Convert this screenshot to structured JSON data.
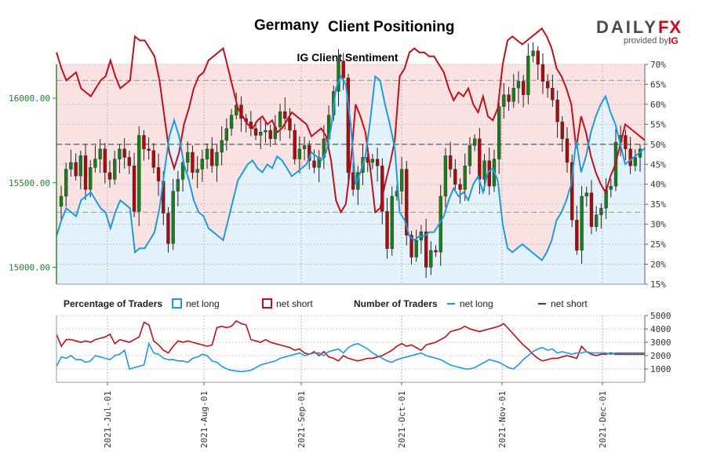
{
  "header": {
    "title_country": "Germany",
    "title_rest": "Client Positioning",
    "subtitle": "IG Client Sentiment",
    "logo_main": "DAILY",
    "logo_fx": "FX",
    "logo_provided": "provided by",
    "logo_ig": "IG"
  },
  "legend": {
    "pct_title": "Percentage of Traders",
    "pct_long": "net long",
    "pct_short": "net short",
    "num_title": "Number of Traders",
    "num_long": "net long",
    "num_short": "net short"
  },
  "colors": {
    "long": "#1e9be0",
    "short": "#c0101e",
    "candle_up": "#1f7a1f",
    "candle_down": "#a01010",
    "short_fill": "#fbe3e3",
    "long_fill": "#e4f2fb",
    "price_axis": "#2e7d32"
  },
  "chart_data": [
    {
      "type": "candlestick+line",
      "name": "Germany 30 price with IG client sentiment",
      "price_ticks": [
        "15000.00",
        "15500.00",
        "16000.00"
      ],
      "price_range": [
        14900,
        16200
      ],
      "pct_ticks": [
        "15%",
        "20%",
        "25%",
        "30%",
        "35%",
        "40%",
        "45%",
        "50%",
        "55%",
        "60%",
        "65%",
        "70%"
      ],
      "pct_range": [
        15,
        70
      ],
      "reference_lines_pct": [
        33,
        50,
        66
      ],
      "price_series": [
        15360,
        15420,
        15580,
        15620,
        15540,
        15660,
        15460,
        15590,
        15640,
        15700,
        15560,
        15520,
        15640,
        15700,
        15650,
        15600,
        15330,
        15780,
        15700,
        15690,
        15590,
        15510,
        15320,
        15140,
        15450,
        15520,
        15620,
        15680,
        15560,
        15580,
        15640,
        15700,
        15600,
        15680,
        15750,
        15820,
        15900,
        15960,
        15880,
        15860,
        15820,
        15780,
        15800,
        15810,
        15760,
        15830,
        15920,
        15880,
        15810,
        15640,
        15700,
        15720,
        15630,
        15590,
        15650,
        15760,
        15900,
        16040,
        16220,
        16120,
        15560,
        15460,
        15560,
        15650,
        15620,
        15640,
        15600,
        15330,
        15110,
        15420,
        15450,
        15580,
        15190,
        15060,
        15160,
        15210,
        15000,
        15100,
        15090,
        15420,
        15660,
        15580,
        15490,
        15460,
        15600,
        15720,
        15760,
        15520,
        15630,
        15480,
        15640,
        15950,
        16020,
        15980,
        16060,
        16100,
        16020,
        16250,
        16280,
        16200,
        16100,
        16060,
        15990,
        15860,
        15760,
        15620,
        15280,
        15100,
        15420,
        15440,
        15240,
        15310,
        15350,
        15460,
        15480,
        15740,
        15780,
        15700,
        15600,
        15650,
        15700
      ],
      "pct_long_series": [
        27,
        31,
        34,
        33,
        32,
        36,
        37,
        38,
        36,
        34,
        33,
        29,
        33,
        36,
        35,
        34,
        23,
        24,
        24,
        26,
        28,
        34,
        43,
        52,
        56,
        52,
        45,
        41,
        36,
        33,
        32,
        29,
        28,
        27,
        26,
        31,
        36,
        41,
        43,
        45,
        46,
        44,
        43,
        45,
        44,
        47,
        46,
        44,
        42,
        43,
        44,
        45,
        48,
        47,
        46,
        48,
        54,
        64,
        67,
        65,
        55,
        40,
        43,
        47,
        56,
        67,
        66,
        60,
        55,
        49,
        33,
        31,
        27,
        26,
        27,
        27,
        28,
        28,
        30,
        32,
        36,
        39,
        37,
        38,
        36,
        40,
        42,
        38,
        43,
        44,
        41,
        30,
        24,
        23,
        24,
        25,
        24,
        23,
        22,
        21,
        23,
        26,
        31,
        33,
        36,
        40,
        51,
        43,
        47,
        53,
        57,
        60,
        62,
        58,
        55,
        50,
        45,
        46,
        47,
        48,
        49
      ],
      "pct_short_series": [
        73,
        69,
        66,
        67,
        68,
        64,
        63,
        62,
        64,
        66,
        67,
        71,
        67,
        64,
        65,
        66,
        77,
        76,
        76,
        74,
        72,
        66,
        57,
        48,
        44,
        48,
        55,
        59,
        64,
        67,
        68,
        71,
        72,
        73,
        74,
        69,
        64,
        59,
        57,
        55,
        54,
        56,
        57,
        55,
        56,
        53,
        54,
        56,
        58,
        57,
        56,
        55,
        52,
        53,
        54,
        52,
        46,
        36,
        33,
        35,
        45,
        60,
        57,
        53,
        44,
        33,
        34,
        40,
        45,
        51,
        67,
        69,
        73,
        74,
        73,
        73,
        72,
        72,
        70,
        68,
        64,
        61,
        63,
        62,
        64,
        60,
        58,
        62,
        57,
        56,
        59,
        70,
        76,
        77,
        76,
        75,
        76,
        77,
        78,
        79,
        77,
        74,
        69,
        67,
        64,
        60,
        49,
        57,
        53,
        47,
        43,
        40,
        38,
        42,
        45,
        50,
        55,
        54,
        53,
        52,
        51
      ],
      "date_ticks": [
        "2021-Jul-01",
        "2021-Aug-01",
        "2021-Sep-01",
        "2021-Oct-01",
        "2021-Nov-01",
        "2021-Dec-01"
      ]
    },
    {
      "type": "line",
      "name": "Number of Traders",
      "count_ticks": [
        "1000",
        "2000",
        "3000",
        "4000",
        "5000"
      ],
      "count_range": [
        0,
        5000
      ],
      "num_long_series": [
        1200,
        1900,
        1800,
        2000,
        1700,
        1700,
        1500,
        1600,
        2000,
        1900,
        1800,
        1700,
        2000,
        2100,
        2400,
        1000,
        1100,
        1200,
        1300,
        2900,
        2200,
        2100,
        1800,
        1700,
        1700,
        1600,
        1600,
        1500,
        1800,
        1900,
        2100,
        2000,
        1600,
        1500,
        1200,
        1000,
        900,
        850,
        800,
        850,
        900,
        1100,
        1300,
        1400,
        1500,
        1600,
        1800,
        1900,
        2000,
        2100,
        2200,
        2000,
        2100,
        2200,
        2200,
        2000,
        2300,
        2400,
        2500,
        2200,
        2600,
        2800,
        2900,
        2700,
        2500,
        2200,
        2000,
        1800,
        1600,
        1500,
        1700,
        1800,
        1900,
        2000,
        2100,
        2200,
        2000,
        1900,
        1800,
        1700,
        1500,
        1300,
        1200,
        1100,
        1000,
        1000,
        1100,
        1300,
        1500,
        1700,
        1600,
        1500,
        1300,
        1100,
        1000,
        1300,
        1700,
        2000,
        2300,
        2500,
        2600,
        2400,
        2500,
        2200,
        2300,
        2200,
        2100,
        2200,
        2200,
        2300,
        2200,
        2200,
        2200,
        2200,
        2100,
        2200,
        2200,
        2200,
        2200,
        2200,
        2200,
        2200
      ],
      "num_short_series": [
        3600,
        2700,
        3200,
        3200,
        3100,
        3000,
        3100,
        3000,
        3200,
        3300,
        3400,
        3600,
        2900,
        3200,
        3100,
        3000,
        3200,
        3400,
        4500,
        4300,
        3100,
        2800,
        2400,
        2200,
        2700,
        3100,
        3000,
        3100,
        3000,
        2900,
        2800,
        2700,
        2800,
        4100,
        4200,
        4100,
        4200,
        4600,
        4400,
        4300,
        3200,
        3100,
        3000,
        3200,
        3000,
        2900,
        2800,
        2700,
        2600,
        2400,
        2500,
        2200,
        2100,
        2300,
        2000,
        2300,
        1900,
        1800,
        1600,
        2000,
        1800,
        1700,
        1600,
        1700,
        1800,
        1800,
        1900,
        2000,
        2200,
        2400,
        2700,
        2900,
        2700,
        2800,
        2600,
        2400,
        2800,
        2900,
        3000,
        3200,
        3400,
        3800,
        3900,
        4000,
        4200,
        4000,
        3900,
        3800,
        3900,
        4000,
        4100,
        4200,
        4400,
        4000,
        3600,
        3200,
        2800,
        2500,
        2100,
        1800,
        1600,
        1700,
        1800,
        1800,
        1900,
        2000,
        1900,
        1800,
        2700,
        2300,
        2100,
        2000,
        2100,
        2100,
        2200,
        2100,
        2100,
        2100,
        2100,
        2100,
        2100,
        2100
      ]
    }
  ]
}
